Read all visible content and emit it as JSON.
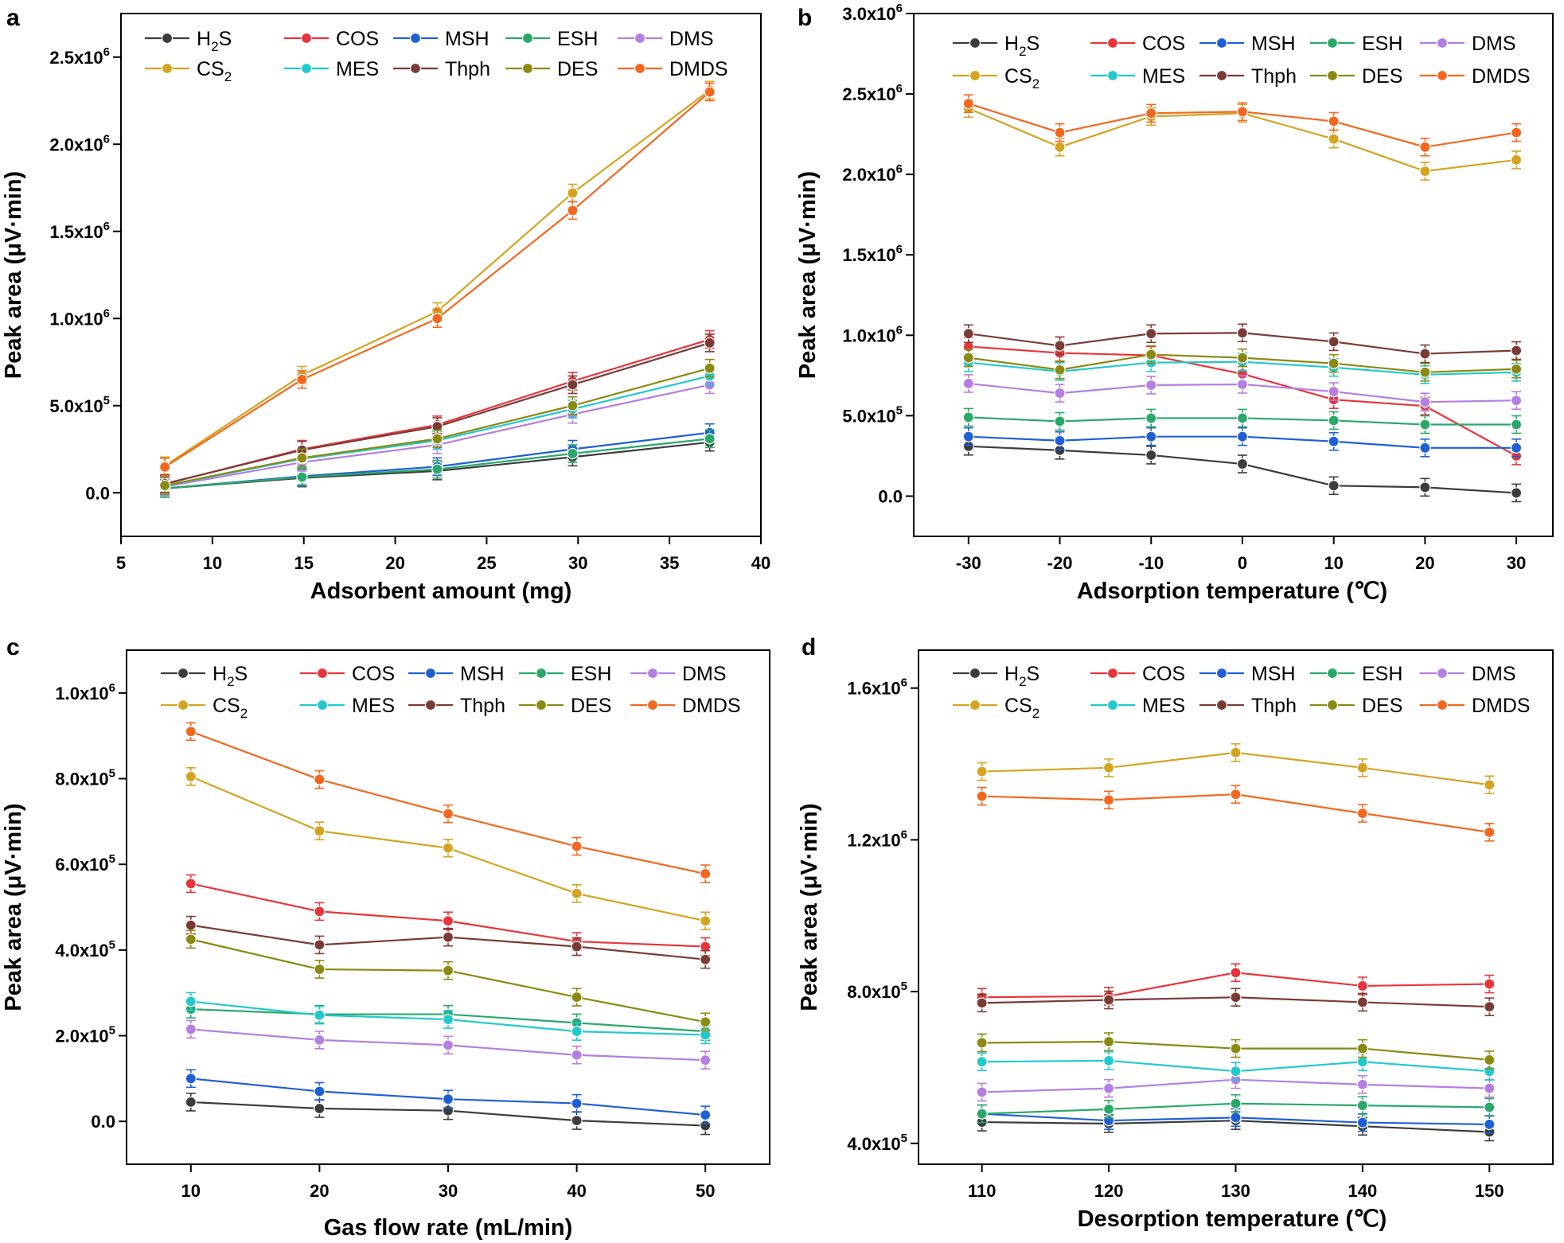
{
  "figure": {
    "series_names": [
      "H2S",
      "COS",
      "MSH",
      "ESH",
      "DMS",
      "CS2",
      "MES",
      "Thph",
      "DES",
      "DMDS"
    ],
    "legend_labels": [
      "H₂S",
      "COS",
      "MSH",
      "ESH",
      "DMS",
      "CS₂",
      "MES",
      "Thph",
      "DES",
      "DMDS"
    ],
    "colors": {
      "H2S": "#3c3c3c",
      "COS": "#e8353b",
      "MSH": "#1f5fd6",
      "ESH": "#2aa86a",
      "DMS": "#b57ee3",
      "CS2": "#d4a421",
      "MES": "#22c9cc",
      "Thph": "#7a3b36",
      "DES": "#8a8a12",
      "DMDS": "#f4671f"
    }
  },
  "chart_data": [
    {
      "type": "line",
      "panel": "a",
      "xlabel": "Adsorbent amount (mg)",
      "ylabel": "Peak area (μV·min)",
      "xlim": [
        5,
        40
      ],
      "ylim": [
        -250000,
        2750000
      ],
      "xticks": [
        5,
        10,
        15,
        20,
        25,
        30,
        35,
        40
      ],
      "yticks": [
        {
          "v": 0,
          "m": "0.0",
          "e": ""
        },
        {
          "v": 500000,
          "m": "5.0x10",
          "e": "5"
        },
        {
          "v": 1000000,
          "m": "1.0x10",
          "e": "6"
        },
        {
          "v": 1500000,
          "m": "1.5x10",
          "e": "6"
        },
        {
          "v": 2000000,
          "m": "2.0x10",
          "e": "6"
        },
        {
          "v": 2500000,
          "m": "2.5x10",
          "e": "6"
        }
      ],
      "x": [
        7.4,
        14.9,
        22.3,
        29.7,
        37.2
      ],
      "series": [
        {
          "name": "H2S",
          "values": [
            25000,
            85000,
            125000,
            205000,
            290000
          ]
        },
        {
          "name": "COS",
          "values": [
            50000,
            250000,
            390000,
            640000,
            880000
          ]
        },
        {
          "name": "MSH",
          "values": [
            25000,
            95000,
            150000,
            250000,
            345000
          ]
        },
        {
          "name": "ESH",
          "values": [
            25000,
            90000,
            135000,
            225000,
            310000
          ]
        },
        {
          "name": "DMS",
          "values": [
            35000,
            175000,
            275000,
            450000,
            620000
          ]
        },
        {
          "name": "CS2",
          "values": [
            155000,
            675000,
            1040000,
            1720000,
            2310000
          ]
        },
        {
          "name": "MES",
          "values": [
            40000,
            195000,
            300000,
            480000,
            670000
          ]
        },
        {
          "name": "Thph",
          "values": [
            52000,
            245000,
            380000,
            620000,
            860000
          ]
        },
        {
          "name": "DES",
          "values": [
            42000,
            200000,
            310000,
            500000,
            715000
          ]
        },
        {
          "name": "DMDS",
          "values": [
            148000,
            650000,
            1000000,
            1620000,
            2300000
          ]
        }
      ]
    },
    {
      "type": "line",
      "panel": "b",
      "xlabel": "Adsorption temperature (℃)",
      "ylabel": "Peak area (μV·min)",
      "xlim": [
        -36,
        34
      ],
      "ylim": [
        -250000,
        3000000
      ],
      "xticks": [
        -30,
        -20,
        -10,
        0,
        10,
        20,
        30
      ],
      "yticks": [
        {
          "v": 0,
          "m": "0.0",
          "e": ""
        },
        {
          "v": 500000,
          "m": "5.0x10",
          "e": "5"
        },
        {
          "v": 1000000,
          "m": "1.0x10",
          "e": "6"
        },
        {
          "v": 1500000,
          "m": "1.5x10",
          "e": "6"
        },
        {
          "v": 2000000,
          "m": "2.0x10",
          "e": "6"
        },
        {
          "v": 2500000,
          "m": "2.5x10",
          "e": "6"
        },
        {
          "v": 3000000,
          "m": "3.0x10",
          "e": "6"
        }
      ],
      "x": [
        -30,
        -20,
        -10,
        0,
        10,
        20,
        30
      ],
      "series": [
        {
          "name": "H2S",
          "values": [
            310000,
            285000,
            255000,
            200000,
            65000,
            55000,
            20000
          ]
        },
        {
          "name": "COS",
          "values": [
            930000,
            890000,
            875000,
            760000,
            600000,
            560000,
            250000
          ]
        },
        {
          "name": "MSH",
          "values": [
            370000,
            345000,
            370000,
            370000,
            340000,
            300000,
            300000
          ]
        },
        {
          "name": "ESH",
          "values": [
            490000,
            465000,
            485000,
            485000,
            470000,
            445000,
            445000
          ]
        },
        {
          "name": "DMS",
          "values": [
            700000,
            640000,
            690000,
            695000,
            650000,
            585000,
            595000
          ]
        },
        {
          "name": "CS2",
          "values": [
            2410000,
            2170000,
            2360000,
            2380000,
            2220000,
            2020000,
            2090000
          ]
        },
        {
          "name": "MES",
          "values": [
            830000,
            775000,
            830000,
            835000,
            800000,
            755000,
            770000
          ]
        },
        {
          "name": "Thph",
          "values": [
            1010000,
            935000,
            1010000,
            1015000,
            960000,
            885000,
            905000
          ]
        },
        {
          "name": "DES",
          "values": [
            860000,
            785000,
            880000,
            860000,
            825000,
            770000,
            790000
          ]
        },
        {
          "name": "DMDS",
          "values": [
            2440000,
            2260000,
            2380000,
            2390000,
            2330000,
            2170000,
            2260000
          ]
        }
      ]
    },
    {
      "type": "line",
      "panel": "c",
      "xlabel": "Gas flow rate (mL/min)",
      "ylabel": "Peak area (μV·min)",
      "xlim": [
        5,
        55
      ],
      "ylim": [
        -100000,
        1100000
      ],
      "xticks": [
        10,
        20,
        30,
        40,
        50
      ],
      "yticks": [
        {
          "v": 0,
          "m": "0.0",
          "e": ""
        },
        {
          "v": 200000,
          "m": "2.0x10",
          "e": "5"
        },
        {
          "v": 400000,
          "m": "4.0x10",
          "e": "5"
        },
        {
          "v": 600000,
          "m": "6.0x10",
          "e": "5"
        },
        {
          "v": 800000,
          "m": "8.0x10",
          "e": "5"
        },
        {
          "v": 1000000,
          "m": "1.0x10",
          "e": "6"
        }
      ],
      "x": [
        10,
        20,
        30,
        40,
        50
      ],
      "series": [
        {
          "name": "H2S",
          "values": [
            45000,
            30000,
            25000,
            2000,
            -10000
          ]
        },
        {
          "name": "COS",
          "values": [
            555000,
            490000,
            468000,
            420000,
            408000
          ]
        },
        {
          "name": "MSH",
          "values": [
            100000,
            70000,
            52000,
            42000,
            15000
          ]
        },
        {
          "name": "ESH",
          "values": [
            262000,
            250000,
            250000,
            230000,
            210000
          ]
        },
        {
          "name": "DMS",
          "values": [
            215000,
            190000,
            178000,
            155000,
            143000
          ]
        },
        {
          "name": "CS2",
          "values": [
            805000,
            678000,
            638000,
            532000,
            468000
          ]
        },
        {
          "name": "MES",
          "values": [
            280000,
            248000,
            238000,
            210000,
            202000
          ]
        },
        {
          "name": "Thph",
          "values": [
            458000,
            412000,
            430000,
            408000,
            378000
          ]
        },
        {
          "name": "DES",
          "values": [
            425000,
            355000,
            352000,
            290000,
            232000
          ]
        },
        {
          "name": "DMDS",
          "values": [
            910000,
            798000,
            718000,
            642000,
            578000
          ]
        }
      ]
    },
    {
      "type": "line",
      "panel": "d",
      "xlabel": "Desorption temperature (℃)",
      "ylabel": "Peak area (μV·min)",
      "xlim": [
        105,
        155
      ],
      "ylim": [
        345000,
        1700000
      ],
      "xticks": [
        110,
        120,
        130,
        140,
        150
      ],
      "yticks": [
        {
          "v": 400000,
          "m": "4.0x10",
          "e": "5"
        },
        {
          "v": 800000,
          "m": "8.0x10",
          "e": "5"
        },
        {
          "v": 1200000,
          "m": "1.2x10",
          "e": "6"
        },
        {
          "v": 1600000,
          "m": "1.6x10",
          "e": "6"
        }
      ],
      "x": [
        110,
        120,
        130,
        140,
        150
      ],
      "series": [
        {
          "name": "H2S",
          "values": [
            456000,
            452000,
            460000,
            445000,
            430000
          ]
        },
        {
          "name": "COS",
          "values": [
            785000,
            788000,
            850000,
            815000,
            820000
          ]
        },
        {
          "name": "MSH",
          "values": [
            478000,
            460000,
            468000,
            455000,
            450000
          ]
        },
        {
          "name": "ESH",
          "values": [
            478000,
            490000,
            505000,
            500000,
            495000
          ]
        },
        {
          "name": "DMS",
          "values": [
            535000,
            545000,
            568000,
            555000,
            545000
          ]
        },
        {
          "name": "CS2",
          "values": [
            1380000,
            1390000,
            1430000,
            1390000,
            1345000
          ]
        },
        {
          "name": "MES",
          "values": [
            615000,
            618000,
            590000,
            615000,
            590000
          ]
        },
        {
          "name": "Thph",
          "values": [
            770000,
            778000,
            785000,
            772000,
            760000
          ]
        },
        {
          "name": "DES",
          "values": [
            665000,
            668000,
            650000,
            650000,
            620000
          ]
        },
        {
          "name": "DMDS",
          "values": [
            1315000,
            1305000,
            1320000,
            1270000,
            1220000
          ]
        }
      ]
    }
  ]
}
